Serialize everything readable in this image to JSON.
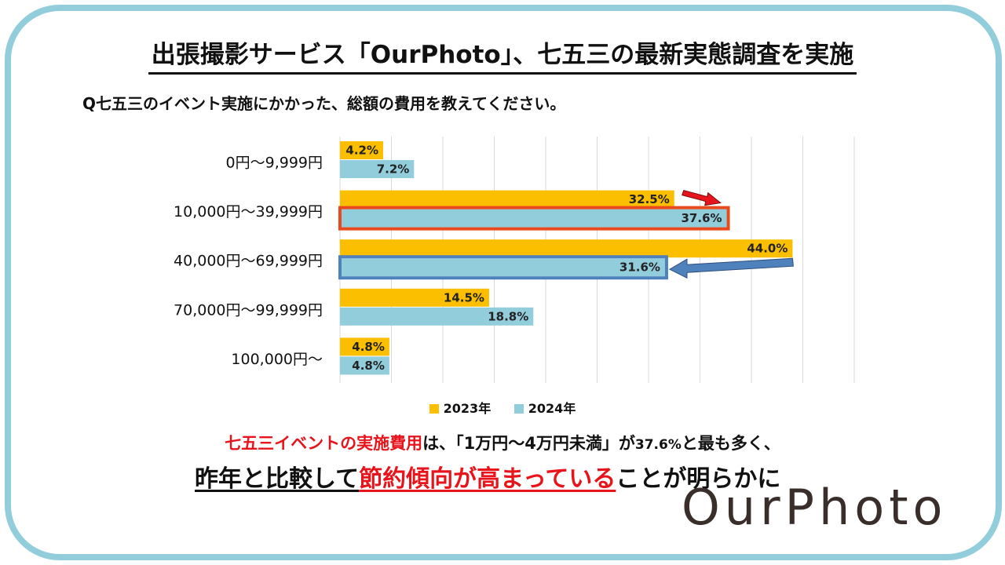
{
  "header": {
    "title": "出張撮影サービス「OurPhoto」、七五三の最新実態調査を実施",
    "question": "Q七五三のイベント実施にかかった、総額の費用を教えてください。"
  },
  "chart_data": {
    "type": "bar",
    "orientation": "horizontal",
    "categories": [
      "0円～9,999円",
      "10,000円～39,999円",
      "40,000円～69,999円",
      "70,000円～99,999円",
      "100,000円～"
    ],
    "series": [
      {
        "name": "2023年",
        "values": [
          4.2,
          32.5,
          44.0,
          14.5,
          4.8
        ],
        "labels": [
          "4.2%",
          "32.5%",
          "44.0%",
          "14.5%",
          "4.8%"
        ],
        "color": "#fcbf00"
      },
      {
        "name": "2024年",
        "values": [
          7.2,
          37.6,
          31.6,
          18.8,
          4.8
        ],
        "labels": [
          "7.2%",
          "37.6%",
          "31.6%",
          "18.8%",
          "4.8%"
        ],
        "color": "#92cddc"
      }
    ],
    "xlim": [
      0,
      50
    ],
    "grid": true,
    "legend_position": "bottom",
    "highlights": [
      {
        "category": "10,000円～39,999円",
        "series": "2024年",
        "color": "#e8491d",
        "arrow": "increase",
        "arrow_color": "#e8141b"
      },
      {
        "category": "40,000円～69,999円",
        "series": "2024年",
        "color": "#4f81bd",
        "arrow": "decrease",
        "arrow_color": "#4f81bd"
      }
    ]
  },
  "legend": {
    "item_2023": "2023年",
    "item_2024": "2024年"
  },
  "conclusion": {
    "line1_red": "七五三イベントの実施費用",
    "line1_a": "は、「1万円～4万円未満」が",
    "line1_small": "37.6%",
    "line1_b": "と最も多く、",
    "line2_a": "昨年と比較して",
    "line2_red": "節約傾向が高まっている",
    "line2_b": "ことが明らかに"
  },
  "brand": {
    "logo": "OurPhoto"
  },
  "colors": {
    "frame": "#92cddc",
    "y2023": "#fcbf00",
    "y2024": "#92cddc",
    "accent_red": "#e8141b"
  }
}
